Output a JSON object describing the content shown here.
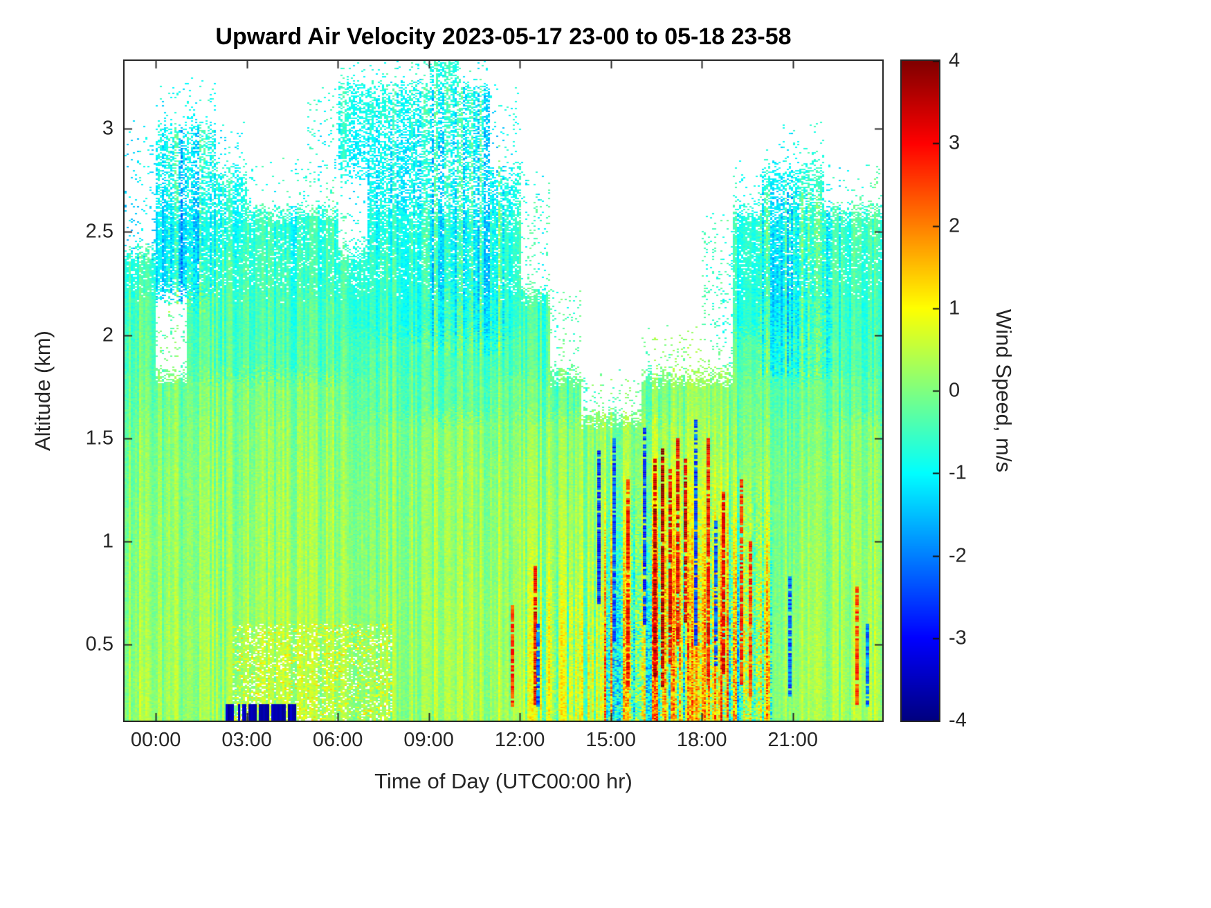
{
  "chart_data": {
    "type": "heatmap",
    "title": "Upward Air Velocity 2023-05-17 23-00 to 05-18 23-58",
    "xlabel": "Time of Day (UTC00:00 hr)",
    "ylabel": "Altitude (km)",
    "x_range_hours": [
      -1.03,
      23.95
    ],
    "y_range_km": [
      0.13,
      3.33
    ],
    "x_ticks": [
      {
        "hour": 0,
        "label": "00:00"
      },
      {
        "hour": 3,
        "label": "03:00"
      },
      {
        "hour": 6,
        "label": "06:00"
      },
      {
        "hour": 9,
        "label": "09:00"
      },
      {
        "hour": 12,
        "label": "12:00"
      },
      {
        "hour": 15,
        "label": "15:00"
      },
      {
        "hour": 18,
        "label": "18:00"
      },
      {
        "hour": 21,
        "label": "21:00"
      }
    ],
    "y_ticks": [
      {
        "km": 0.5,
        "label": "0.5"
      },
      {
        "km": 1,
        "label": "1"
      },
      {
        "km": 1.5,
        "label": "1.5"
      },
      {
        "km": 2,
        "label": "2"
      },
      {
        "km": 2.5,
        "label": "2.5"
      },
      {
        "km": 3,
        "label": "3"
      }
    ],
    "colorbar": {
      "label": "Wind Speed, m/s",
      "min": -4,
      "max": 4,
      "colormap": "jet",
      "ticks": [
        {
          "value": 4,
          "label": "4"
        },
        {
          "value": 3,
          "label": "3"
        },
        {
          "value": 2,
          "label": "2"
        },
        {
          "value": 1,
          "label": "1"
        },
        {
          "value": 0,
          "label": "0"
        },
        {
          "value": -1,
          "label": "-1"
        },
        {
          "value": -2,
          "label": "-2"
        },
        {
          "value": -3,
          "label": "-3"
        },
        {
          "value": -4,
          "label": "-4"
        }
      ]
    },
    "grid": {
      "description": "Mean upward air velocity (m/s); columns are 1-hour bins from 23:00 (day before) to 24:00; rows are 0.2 km bins bottom-to-top starting at 0.2 km; null = no data (white)",
      "time_bin_hours": 1,
      "first_bin_start_hour": -1,
      "alt_bin_km": 0.2,
      "alt_bottom_km": 0.2,
      "rows_bottom_to_top": [
        [
          0.3,
          0.2,
          0.2,
          0.2,
          0.3,
          0.35,
          0.3,
          0.25,
          0.2,
          0.2,
          0.3,
          0.3,
          0.35,
          0.4,
          0.35,
          0.4,
          0.4,
          0.5,
          0.5,
          0.45,
          0.3,
          0.25,
          0.2,
          0.2,
          0.3
        ],
        [
          0.25,
          0.2,
          0.25,
          0.2,
          0.3,
          0.35,
          0.3,
          0.25,
          0.2,
          0.2,
          0.3,
          0.3,
          0.3,
          0.35,
          0.3,
          0.35,
          0.4,
          0.55,
          0.55,
          0.4,
          0.3,
          0.2,
          0.2,
          0.15,
          0.25
        ],
        [
          0.2,
          0.15,
          0.2,
          0.2,
          0.25,
          0.3,
          0.25,
          0.2,
          0.15,
          0.2,
          0.25,
          0.3,
          0.3,
          0.3,
          0.3,
          0.3,
          0.4,
          0.6,
          0.6,
          0.4,
          0.25,
          0.15,
          0.15,
          0.1,
          0.2
        ],
        [
          0.2,
          0.1,
          0.15,
          0.15,
          0.2,
          0.25,
          0.2,
          0.2,
          0.1,
          0.15,
          0.2,
          0.25,
          0.25,
          0.25,
          0.2,
          0.25,
          0.35,
          0.6,
          0.55,
          0.35,
          0.2,
          0.1,
          0.1,
          0.1,
          0.15
        ],
        [
          0.15,
          0.1,
          0.15,
          0.1,
          0.2,
          0.2,
          0.2,
          0.15,
          0.1,
          0.1,
          0.2,
          0.2,
          0.25,
          0.2,
          0.2,
          0.2,
          0.3,
          0.5,
          0.5,
          0.3,
          0.15,
          0.1,
          0.05,
          0.05,
          0.1
        ],
        [
          0.1,
          0.05,
          0.1,
          0.1,
          0.15,
          0.2,
          0.15,
          0.1,
          0.05,
          0.1,
          0.15,
          0.2,
          0.2,
          0.15,
          0.1,
          0.15,
          0.25,
          0.4,
          0.4,
          0.25,
          0.1,
          0.05,
          0.0,
          0.0,
          0.05
        ],
        [
          0.05,
          0.0,
          0.05,
          0.05,
          0.1,
          0.1,
          0.1,
          0.05,
          0.0,
          0.0,
          0.1,
          0.15,
          0.1,
          0.05,
          0.05,
          0.1,
          0.15,
          0.2,
          0.2,
          0.1,
          0.0,
          -0.05,
          -0.1,
          -0.1,
          0.0
        ],
        [
          -0.1,
          -0.1,
          -0.05,
          0.0,
          0.0,
          0.0,
          0.0,
          -0.1,
          -0.2,
          -0.25,
          -0.3,
          -0.2,
          -0.1,
          -0.2,
          -0.3,
          null,
          null,
          -0.1,
          0.1,
          0.0,
          -0.1,
          -0.2,
          -0.2,
          -0.3,
          -0.3
        ],
        [
          -0.2,
          null,
          -0.3,
          -0.35,
          -0.4,
          -0.4,
          -0.35,
          -0.3,
          -0.3,
          -0.35,
          -0.4,
          -0.3,
          -0.3,
          -0.4,
          null,
          null,
          null,
          null,
          null,
          null,
          -0.3,
          -0.6,
          -0.6,
          -0.5,
          -0.5
        ],
        [
          -0.3,
          null,
          -0.4,
          -0.4,
          -0.45,
          -0.5,
          -0.4,
          -0.5,
          -0.6,
          -0.7,
          -0.7,
          -0.7,
          -0.6,
          -0.5,
          null,
          null,
          null,
          null,
          null,
          null,
          -0.7,
          -0.8,
          -0.7,
          -0.6,
          -0.6
        ],
        [
          -0.5,
          -1.2,
          -0.8,
          -0.5,
          -0.5,
          -0.6,
          -0.6,
          -0.5,
          -0.6,
          -0.7,
          -0.9,
          -0.9,
          -0.6,
          null,
          null,
          null,
          null,
          null,
          null,
          null,
          -0.7,
          -0.9,
          -0.8,
          -0.6,
          -0.6
        ],
        [
          null,
          -1.2,
          -1.0,
          -0.8,
          -0.6,
          -0.8,
          -0.6,
          null,
          -0.8,
          -0.7,
          -0.9,
          -0.9,
          -0.6,
          null,
          null,
          null,
          null,
          null,
          null,
          null,
          -0.7,
          -0.8,
          -0.7,
          -0.7,
          -0.5
        ],
        [
          null,
          -1.1,
          -1.0,
          -0.8,
          null,
          null,
          null,
          null,
          -1.0,
          -1.0,
          -0.9,
          -0.8,
          -0.8,
          null,
          null,
          null,
          null,
          null,
          null,
          null,
          null,
          -0.9,
          -0.8,
          null,
          null
        ],
        [
          null,
          -1.0,
          -0.9,
          null,
          null,
          null,
          null,
          -0.9,
          -1.0,
          -1.0,
          -1.0,
          -0.9,
          null,
          null,
          null,
          null,
          null,
          null,
          null,
          null,
          null,
          null,
          null,
          null,
          null
        ],
        [
          null,
          null,
          null,
          null,
          null,
          null,
          null,
          -0.7,
          -0.8,
          -0.8,
          -0.8,
          -0.8,
          null,
          null,
          null,
          null,
          null,
          null,
          null,
          null,
          null,
          null,
          null,
          null,
          null
        ],
        [
          null,
          null,
          null,
          null,
          null,
          null,
          null,
          null,
          null,
          null,
          -0.7,
          null,
          null,
          null,
          null,
          null,
          null,
          null,
          null,
          null,
          null,
          null,
          null,
          null,
          null
        ]
      ]
    },
    "texture": {
      "base_sigma": 0.4,
      "variance_regions": [
        {
          "hours": [
            12.2,
            14.8
          ],
          "alt_km": [
            0.13,
            1.55
          ],
          "sigma": 0.85
        },
        {
          "hours": [
            14.8,
            20.3
          ],
          "alt_km": [
            0.13,
            1.62
          ],
          "sigma": 1.9
        },
        {
          "hours": [
            0.3,
            1.6
          ],
          "alt_km": [
            2.1,
            3.0
          ],
          "sigma": 0.8
        },
        {
          "hours": [
            8.8,
            11.5
          ],
          "alt_km": [
            1.9,
            3.2
          ],
          "sigma": 0.7
        },
        {
          "hours": [
            19.8,
            22.3
          ],
          "alt_km": [
            1.8,
            2.7
          ],
          "sigma": 0.8
        }
      ],
      "pale_speckle_region": {
        "hours": [
          2.5,
          7.8
        ],
        "alt_km": [
          0.13,
          0.6
        ]
      },
      "bottom_dark_band": {
        "hours": [
          2.3,
          4.6
        ],
        "alt_km": [
          0.13,
          0.21
        ],
        "value": -3.6
      }
    },
    "notable_streaks": [
      {
        "hour": 11.75,
        "alt_km": [
          0.2,
          0.7
        ],
        "value": 2.6
      },
      {
        "hour": 12.5,
        "alt_km": [
          0.2,
          0.9
        ],
        "value": 3.0
      },
      {
        "hour": 12.6,
        "alt_km": [
          0.2,
          0.6
        ],
        "value": -2.2
      },
      {
        "hour": 14.6,
        "alt_km": [
          0.7,
          1.45
        ],
        "value": -2.6
      },
      {
        "hour": 15.1,
        "alt_km": [
          0.5,
          1.5
        ],
        "value": -2.4
      },
      {
        "hour": 15.55,
        "alt_km": [
          0.3,
          1.3
        ],
        "value": 2.8
      },
      {
        "hour": 16.1,
        "alt_km": [
          0.6,
          1.55
        ],
        "value": -2.5
      },
      {
        "hour": 16.45,
        "alt_km": [
          0.35,
          1.4
        ],
        "value": 3.4
      },
      {
        "hour": 16.7,
        "alt_km": [
          0.3,
          1.45
        ],
        "value": 3.6
      },
      {
        "hour": 16.95,
        "alt_km": [
          0.4,
          1.35
        ],
        "value": 3.2
      },
      {
        "hour": 17.2,
        "alt_km": [
          0.5,
          1.5
        ],
        "value": 3.0
      },
      {
        "hour": 17.45,
        "alt_km": [
          0.6,
          1.4
        ],
        "value": 3.3
      },
      {
        "hour": 17.8,
        "alt_km": [
          0.5,
          1.6
        ],
        "value": -2.4
      },
      {
        "hour": 18.2,
        "alt_km": [
          0.3,
          1.5
        ],
        "value": 2.9
      },
      {
        "hour": 18.45,
        "alt_km": [
          0.4,
          1.1
        ],
        "value": -2.3
      },
      {
        "hour": 18.7,
        "alt_km": [
          0.35,
          1.25
        ],
        "value": 3.0
      },
      {
        "hour": 19.3,
        "alt_km": [
          0.3,
          1.3
        ],
        "value": 2.7
      },
      {
        "hour": 19.6,
        "alt_km": [
          0.25,
          1.0
        ],
        "value": 2.5
      },
      {
        "hour": 20.9,
        "alt_km": [
          0.25,
          0.85
        ],
        "value": -2.2
      },
      {
        "hour": 23.1,
        "alt_km": [
          0.2,
          0.8
        ],
        "value": 2.4
      },
      {
        "hour": 23.45,
        "alt_km": [
          0.2,
          0.6
        ],
        "value": -2.0
      }
    ]
  }
}
